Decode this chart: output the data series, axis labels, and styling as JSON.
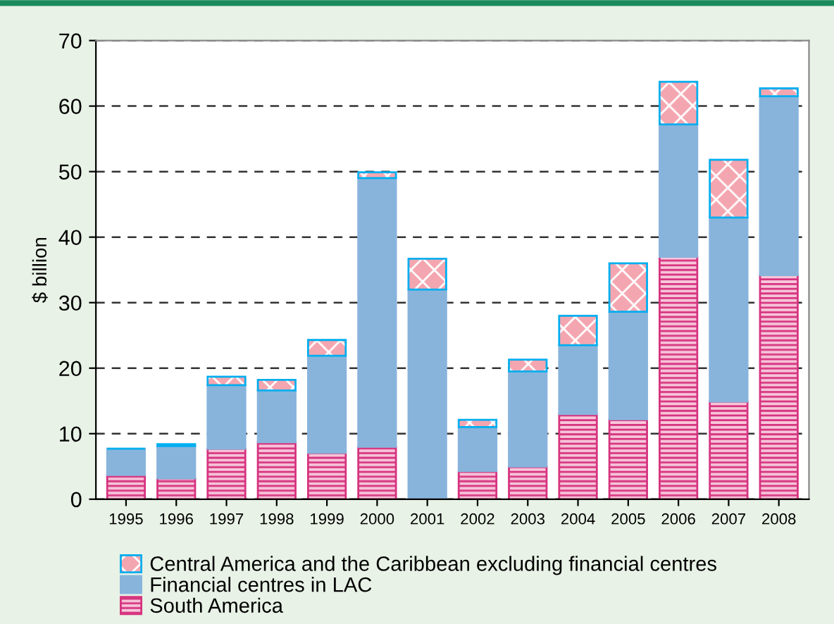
{
  "chart_data": {
    "type": "bar",
    "ylabel": "$ billion",
    "stacked": true,
    "categories": [
      "1995",
      "1996",
      "1997",
      "1998",
      "1999",
      "2000",
      "2001",
      "2002",
      "2003",
      "2004",
      "2005",
      "2006",
      "2007",
      "2008"
    ],
    "series": [
      {
        "name": "South America",
        "color": "#d6337f",
        "values": [
          3.7,
          3.2,
          7.7,
          8.7,
          7.1,
          8.0,
          0,
          4.3,
          5.0,
          13.0,
          12.2,
          37.0,
          14.9,
          34.2
        ]
      },
      {
        "name": "Financial centres in LAC",
        "color": "#88b4dc",
        "values": [
          4.0,
          4.9,
          9.7,
          7.9,
          14.8,
          41.0,
          32.0,
          6.7,
          14.5,
          10.5,
          16.4,
          20.2,
          28.1,
          27.3
        ]
      },
      {
        "name": "Central America and the Caribbean excluding financial centres",
        "color": "#00aeef",
        "values": [
          0,
          0.3,
          1.3,
          1.6,
          2.4,
          0.9,
          4.7,
          1.1,
          1.8,
          4.5,
          7.4,
          6.5,
          8.8,
          1.2
        ]
      }
    ],
    "ylim": [
      0,
      70
    ],
    "yticks": [
      0,
      10,
      20,
      30,
      40,
      50,
      60,
      70
    ],
    "grid": "y",
    "legend": "bottom"
  }
}
